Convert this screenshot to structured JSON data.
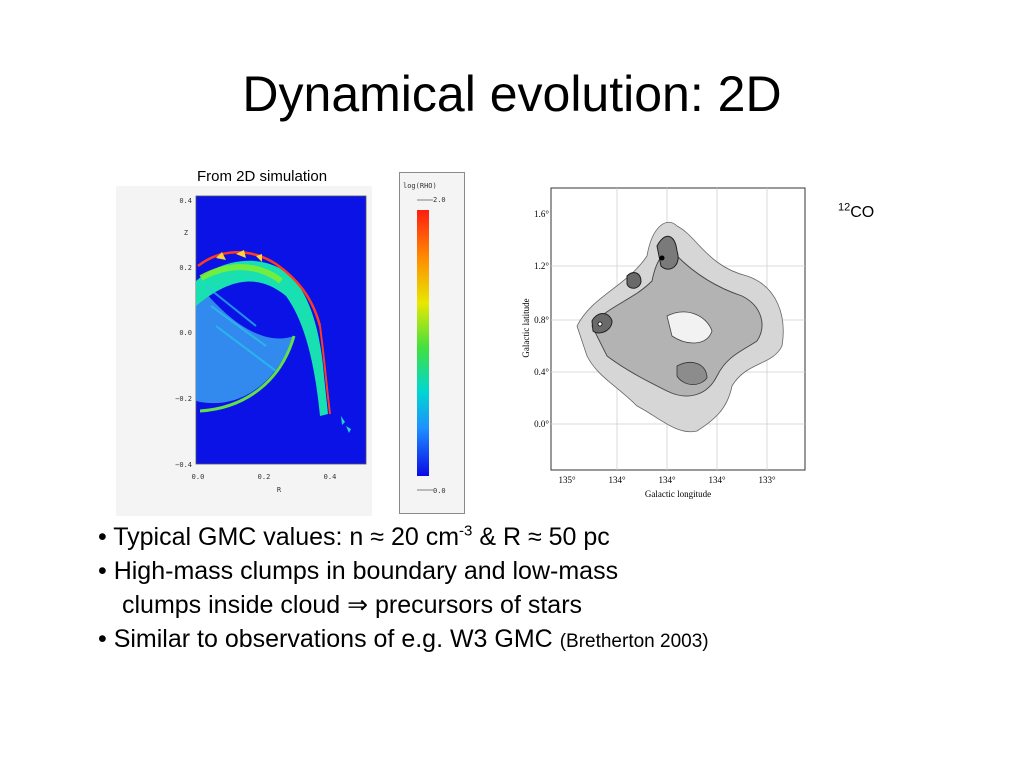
{
  "slide": {
    "title": "Dynamical evolution: 2D"
  },
  "simulation_panel": {
    "caption": "From 2D simulation",
    "axis_label_z": "Z",
    "axis_label_r": "R",
    "y_ticks": [
      "0.4",
      "0.2",
      "0.0",
      "−0.2",
      "−0.4"
    ],
    "x_ticks": [
      "0.0",
      "0.2",
      "0.4"
    ],
    "background_color": "#0b12e6"
  },
  "colorbar": {
    "title": "log(RHO)",
    "max_label": "2.0",
    "min_label": "0.0"
  },
  "observation_panel": {
    "isotope_label": "12",
    "molecule_label": "CO",
    "y_axis_label": "Galactic latitude",
    "x_axis_label": "Galactic longitude",
    "y_ticks": [
      "1.6°",
      "1.2°",
      "0.8°",
      "0.4°",
      "0.0°"
    ],
    "x_ticks": [
      "135°",
      "134°",
      "134°",
      "134°",
      "133°"
    ]
  },
  "bullets": {
    "b1_pre": "• Typical GMC values:  n ≈ 20 cm",
    "b1_sup": "-3",
    "b1_post": " & R ≈ 50 pc",
    "b2_line1": "• High-mass clumps in boundary and low-mass",
    "b2_line2_pre": "clumps inside cloud ",
    "b2_arrow": "⇒",
    "b2_line2_post": " precursors of stars",
    "b3_main": "• Similar to observations of e.g. W3 GMC ",
    "b3_ref": "(Bretherton 2003)"
  }
}
